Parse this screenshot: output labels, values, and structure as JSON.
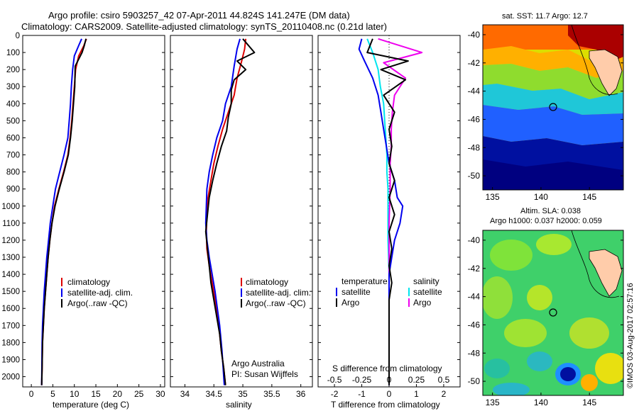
{
  "header": {
    "line1": "Argo profile: csiro 5903257_42 07-Apr-2011 44.824S 141.247E (DM data)",
    "line2": "Climatology: CARS2009. Satellite-adjusted climatology: synTS_20110408.nc (0.21d later)"
  },
  "depth_ticks": [
    0,
    100,
    200,
    300,
    400,
    500,
    600,
    700,
    800,
    900,
    1000,
    1100,
    1200,
    1300,
    1400,
    1500,
    1600,
    1700,
    1800,
    1900,
    2000
  ],
  "colors": {
    "climatology": "#dd0000",
    "satellite": "#0000ee",
    "argo": "#000000",
    "sat_s": "#00e5ee",
    "argo_s": "#ee00ee"
  },
  "temperature_panel": {
    "xlabel": "temperature (deg C)",
    "xticks": [
      "0",
      "5",
      "10",
      "15",
      "20",
      "25",
      "30"
    ],
    "legend": [
      "climatology",
      "satellite-adj. clim.",
      "Argo(..raw -QC)"
    ]
  },
  "salinity_panel": {
    "xlabel": "salinity",
    "xticks": [
      "34",
      "34.5",
      "35",
      "35.5",
      "36"
    ],
    "legend": [
      "climatology",
      "satellite-adj. clim.",
      "Argo(..raw -QC)"
    ],
    "note1": "Argo Australia",
    "note2": "PI: Susan Wijffels"
  },
  "difference_panel": {
    "xlabel": "T difference from climatology",
    "top_label": "S difference from climatology",
    "s_ticks": [
      "-0.5",
      "-0.25",
      "0",
      "0.25",
      "0.5"
    ],
    "t_ticks": [
      "-2",
      "-1",
      "0",
      "1",
      "2"
    ],
    "legend_t_title": "temperature",
    "legend_s_title": "salinity",
    "legend_t": [
      "satellite",
      "Argo"
    ],
    "legend_s": [
      "satellite",
      "Argo"
    ]
  },
  "sst_map": {
    "title": "sat. SST: 11.7 Argo: 12.7",
    "lat_ticks": [
      "-40",
      "-42",
      "-44",
      "-46",
      "-48",
      "-50"
    ],
    "lon_ticks": [
      "135",
      "140",
      "145"
    ]
  },
  "sla_map": {
    "title1": "Altim. SLA: 0.038",
    "title2": "Argo h1000: 0.037 h2000: 0.059",
    "lat_ticks": [
      "-40",
      "-42",
      "-44",
      "-46",
      "-48",
      "-50"
    ],
    "lon_ticks": [
      "135",
      "140",
      "145"
    ]
  },
  "credit": "©IMOS 03-Aug-2017 02:57:16",
  "chart_data": [
    {
      "type": "line",
      "title": "",
      "xlabel": "temperature (deg C)",
      "ylabel": "",
      "xlim": [
        -2,
        31
      ],
      "ylim": [
        2060,
        0
      ],
      "legend_position": "lower-right",
      "series": [
        {
          "name": "climatology",
          "x": [
            12.8,
            12.2,
            11.0,
            10.3,
            10.0,
            9.7,
            9.4,
            9.0,
            8.5,
            7.5,
            6.4,
            5.4,
            4.8,
            4.3,
            3.9,
            3.6,
            3.3,
            3.0,
            2.8,
            2.6,
            2.5,
            2.4
          ],
          "y": [
            20,
            60,
            120,
            200,
            300,
            400,
            500,
            600,
            700,
            800,
            900,
            1000,
            1100,
            1200,
            1300,
            1400,
            1500,
            1600,
            1700,
            1800,
            1950,
            2050
          ]
        },
        {
          "name": "satellite-adj. clim.",
          "x": [
            11.7,
            11.0,
            10.0,
            9.6,
            9.3,
            9.1,
            8.8,
            8.5,
            7.6,
            6.6,
            5.6,
            5.0,
            4.4,
            4.0,
            3.6,
            3.3,
            3.0,
            2.8,
            2.6,
            2.5,
            2.4
          ],
          "y": [
            20,
            60,
            120,
            200,
            300,
            400,
            500,
            600,
            700,
            800,
            900,
            1000,
            1100,
            1200,
            1300,
            1400,
            1500,
            1600,
            1700,
            1800,
            2050
          ]
        },
        {
          "name": "Argo(..raw -QC)",
          "x": [
            12.7,
            12.3,
            11.8,
            10.2,
            10.1,
            9.8,
            9.5,
            9.1,
            8.6,
            7.6,
            6.5,
            5.5,
            4.8,
            4.3,
            3.9,
            3.6,
            3.3,
            3.0,
            2.8,
            2.6,
            2.5,
            2.4
          ],
          "y": [
            20,
            60,
            100,
            180,
            300,
            400,
            500,
            600,
            700,
            800,
            900,
            1000,
            1100,
            1200,
            1300,
            1400,
            1500,
            1600,
            1700,
            1800,
            1950,
            2050
          ]
        }
      ]
    },
    {
      "type": "line",
      "title": "",
      "xlabel": "salinity",
      "ylabel": "",
      "xlim": [
        33.75,
        36.2
      ],
      "ylim": [
        2060,
        0
      ],
      "legend_position": "lower-right",
      "series": [
        {
          "name": "climatology",
          "x": [
            35.05,
            35.03,
            34.98,
            34.9,
            34.85,
            34.75,
            34.65,
            34.57,
            34.5,
            34.45,
            34.4,
            34.38,
            34.37,
            34.38,
            34.42,
            34.47,
            34.52,
            34.57,
            34.6,
            34.63,
            34.67,
            34.7
          ],
          "y": [
            20,
            80,
            150,
            250,
            350,
            450,
            550,
            650,
            750,
            850,
            950,
            1050,
            1150,
            1250,
            1350,
            1450,
            1550,
            1650,
            1750,
            1850,
            1950,
            2050
          ]
        },
        {
          "name": "satellite-adj. clim.",
          "x": [
            34.95,
            34.9,
            34.85,
            34.8,
            34.7,
            34.65,
            34.55,
            34.48,
            34.42,
            34.38,
            34.37,
            34.36,
            34.38,
            34.42,
            34.47,
            34.52,
            34.56,
            34.6,
            34.64,
            34.68
          ],
          "y": [
            20,
            80,
            180,
            300,
            400,
            500,
            600,
            700,
            800,
            900,
            1000,
            1100,
            1200,
            1300,
            1400,
            1500,
            1600,
            1700,
            1850,
            2050
          ]
        },
        {
          "name": "Argo(..raw -QC)",
          "x": [
            35.0,
            35.2,
            34.9,
            35.05,
            34.85,
            34.8,
            34.8,
            34.75,
            34.72,
            34.63,
            34.55,
            34.48,
            34.42,
            34.39,
            34.36,
            34.39,
            34.42,
            34.45,
            34.5,
            34.55,
            34.6,
            34.63,
            34.67,
            34.7
          ],
          "y": [
            20,
            100,
            150,
            200,
            260,
            320,
            400,
            480,
            560,
            650,
            750,
            850,
            950,
            1050,
            1150,
            1250,
            1350,
            1450,
            1550,
            1650,
            1750,
            1850,
            1950,
            2050
          ]
        }
      ]
    },
    {
      "type": "line",
      "title": "",
      "xlabel": "T difference from climatology",
      "x2label": "S difference from climatology",
      "ylabel": "",
      "xlim": [
        -2.6,
        2.6
      ],
      "x2lim": [
        -0.65,
        0.65
      ],
      "ylim": [
        2060,
        0
      ],
      "legend_position": "lower-right",
      "series": [
        {
          "name": "temperature satellite",
          "axis": "T",
          "x": [
            -1.0,
            -1.1,
            -0.9,
            -0.6,
            -0.4,
            -0.3,
            -0.2,
            -0.1,
            0.0,
            0.2,
            0.3,
            0.5,
            0.4,
            0.2,
            0.1,
            0.0,
            0.0,
            0.0,
            0.0,
            0.0,
            0.0
          ],
          "y": [
            20,
            80,
            150,
            250,
            350,
            450,
            550,
            650,
            750,
            850,
            950,
            1000,
            1100,
            1200,
            1300,
            1400,
            1500,
            1600,
            1700,
            1800,
            2050
          ]
        },
        {
          "name": "temperature Argo",
          "axis": "T",
          "x": [
            -0.6,
            -0.8,
            0.7,
            -0.3,
            0.6,
            -0.2,
            0.2,
            0.0,
            0.1,
            0.0,
            0.2,
            0.0,
            0.2,
            0.0,
            0.1,
            0.0,
            0.1,
            0.0,
            0.0,
            0.0,
            0.0
          ],
          "y": [
            20,
            100,
            150,
            200,
            260,
            350,
            450,
            550,
            650,
            750,
            850,
            950,
            1050,
            1150,
            1250,
            1350,
            1450,
            1550,
            1650,
            1800,
            2050
          ]
        },
        {
          "name": "salinity satellite",
          "axis": "S",
          "x": [
            -0.2,
            -0.15,
            -0.1,
            -0.08,
            -0.05,
            -0.04,
            -0.03,
            -0.02,
            -0.02,
            -0.01,
            -0.01,
            -0.01,
            0.0,
            0.0,
            0.0,
            0.0,
            0.0
          ],
          "y": [
            20,
            100,
            200,
            300,
            400,
            500,
            600,
            700,
            800,
            900,
            1000,
            1200,
            1400,
            1600,
            1800,
            1950,
            2050
          ]
        },
        {
          "name": "salinity Argo",
          "axis": "S",
          "x": [
            -0.1,
            0.3,
            -0.05,
            0.15,
            0.05,
            0.03,
            0.02,
            0.02,
            0.01,
            0.01,
            0.0,
            0.0,
            0.0,
            0.0
          ],
          "y": [
            20,
            100,
            160,
            250,
            350,
            450,
            550,
            650,
            750,
            900,
            1100,
            1400,
            1700,
            2050
          ]
        }
      ]
    }
  ]
}
